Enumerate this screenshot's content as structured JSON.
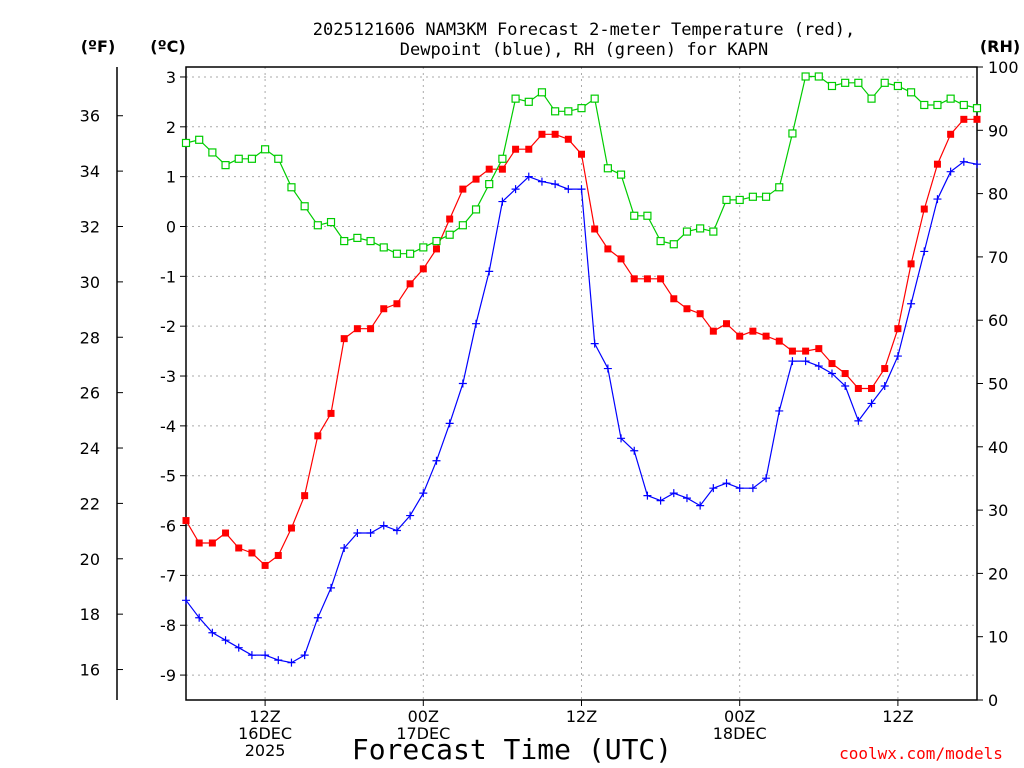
{
  "chart_data": {
    "type": "line",
    "title_line1": "2025121606 NAM3KM Forecast 2-meter Temperature (red),",
    "title_line2": "Dewpoint (blue), RH (green) for KAPN",
    "xlabel": "Forecast Time (UTC)",
    "credit": "coolwx.com/models",
    "unit_f": "(ºF)",
    "unit_c": "(ºC)",
    "unit_rh": "(RH)",
    "x_range_hours": [
      0,
      60
    ],
    "c_range": [
      -9.5,
      3.2
    ],
    "rh_range": [
      0,
      100
    ],
    "f_ticks": [
      "16",
      "18",
      "20",
      "22",
      "24",
      "26",
      "28",
      "30",
      "32",
      "34",
      "36"
    ],
    "c_ticks": [
      "-9",
      "-8",
      "-7",
      "-6",
      "-5",
      "-4",
      "-3",
      "-2",
      "-1",
      "0",
      "1",
      "2",
      "3"
    ],
    "rh_ticks": [
      "0",
      "10",
      "20",
      "30",
      "40",
      "50",
      "60",
      "70",
      "80",
      "90",
      "100"
    ],
    "x_ticks": [
      {
        "hour": 6,
        "label1": "12Z",
        "label2": "16DEC",
        "label3": "2025"
      },
      {
        "hour": 18,
        "label1": "00Z",
        "label2": "17DEC",
        "label3": ""
      },
      {
        "hour": 30,
        "label1": "12Z",
        "label2": "",
        "label3": ""
      },
      {
        "hour": 42,
        "label1": "00Z",
        "label2": "18DEC",
        "label3": ""
      },
      {
        "hour": 54,
        "label1": "12Z",
        "label2": "",
        "label3": ""
      }
    ],
    "series": [
      {
        "name": "2-meter Temperature",
        "unit": "C",
        "color": "#ff0000",
        "marker": "filled-square",
        "values": [
          -5.9,
          -6.35,
          -6.35,
          -6.15,
          -6.45,
          -6.55,
          -6.8,
          -6.6,
          -6.05,
          -5.4,
          -4.2,
          -3.75,
          -2.25,
          -2.05,
          -2.05,
          -1.65,
          -1.55,
          -1.15,
          -0.85,
          -0.45,
          0.15,
          0.75,
          0.95,
          1.15,
          1.15,
          1.55,
          1.55,
          1.85,
          1.85,
          1.75,
          1.45,
          -0.05,
          -0.45,
          -0.65,
          -1.05,
          -1.05,
          -1.05,
          -1.45,
          -1.65,
          -1.75,
          -2.1,
          -1.95,
          -2.2,
          -2.1,
          -2.2,
          -2.3,
          -2.5,
          -2.5,
          -2.45,
          -2.75,
          -2.95,
          -3.25,
          -3.25,
          -2.85,
          -2.05,
          -0.75,
          0.35,
          1.25,
          1.85,
          2.15,
          2.15
        ]
      },
      {
        "name": "Dewpoint",
        "unit": "C",
        "color": "#0000ff",
        "marker": "plus",
        "values": [
          -7.5,
          -7.85,
          -8.15,
          -8.3,
          -8.45,
          -8.6,
          -8.6,
          -8.7,
          -8.75,
          -8.6,
          -7.85,
          -7.25,
          -6.45,
          -6.15,
          -6.15,
          -6.0,
          -6.1,
          -5.8,
          -5.35,
          -4.7,
          -3.95,
          -3.15,
          -1.95,
          -0.9,
          0.5,
          0.75,
          1.0,
          0.9,
          0.85,
          0.75,
          0.75,
          -2.35,
          -2.85,
          -4.25,
          -4.5,
          -5.4,
          -5.5,
          -5.35,
          -5.45,
          -5.6,
          -5.25,
          -5.15,
          -5.25,
          -5.25,
          -5.05,
          -3.7,
          -2.7,
          -2.7,
          -2.8,
          -2.95,
          -3.2,
          -3.9,
          -3.55,
          -3.2,
          -2.6,
          -1.55,
          -0.5,
          0.55,
          1.1,
          1.3,
          1.25
        ]
      },
      {
        "name": "RH",
        "unit": "%",
        "color": "#00cc00",
        "marker": "open-square",
        "values": [
          88,
          88.5,
          86.5,
          84.5,
          85.5,
          85.5,
          87,
          85.5,
          81,
          78,
          75,
          75.5,
          72.5,
          73,
          72.5,
          71.5,
          70.5,
          70.5,
          71.5,
          72.5,
          73.5,
          75,
          77.5,
          81.5,
          85.5,
          95,
          94.5,
          96,
          93,
          93,
          93.5,
          95,
          84,
          83,
          76.5,
          76.5,
          72.5,
          72,
          74,
          74.5,
          74,
          79,
          79,
          79.5,
          79.5,
          81,
          89.5,
          98.5,
          98.5,
          97,
          97.5,
          97.5,
          95,
          97.5,
          97,
          96,
          94,
          94,
          95,
          94,
          93.5
        ]
      }
    ]
  }
}
